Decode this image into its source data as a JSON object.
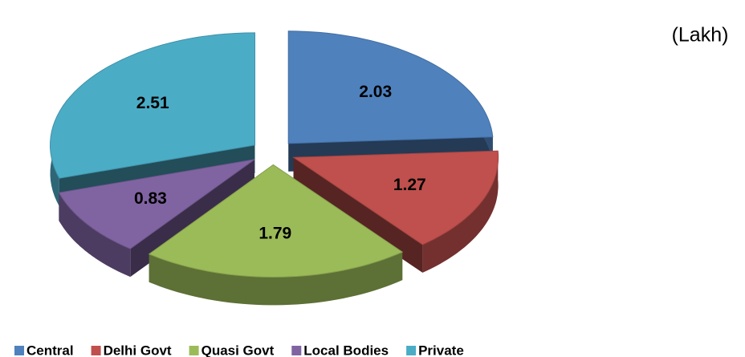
{
  "chart_data": {
    "type": "pie3d",
    "unit_label": "(Lakh)",
    "categories": [
      "Central",
      "Delhi Govt",
      "Quasi Govt",
      "Local Bodies",
      "Private"
    ],
    "values": [
      2.03,
      1.27,
      1.79,
      0.83,
      2.51
    ],
    "colors": [
      "#4f81bd",
      "#c0504d",
      "#9bbb59",
      "#8064a2",
      "#4bacc6"
    ],
    "legend": "bottom"
  }
}
